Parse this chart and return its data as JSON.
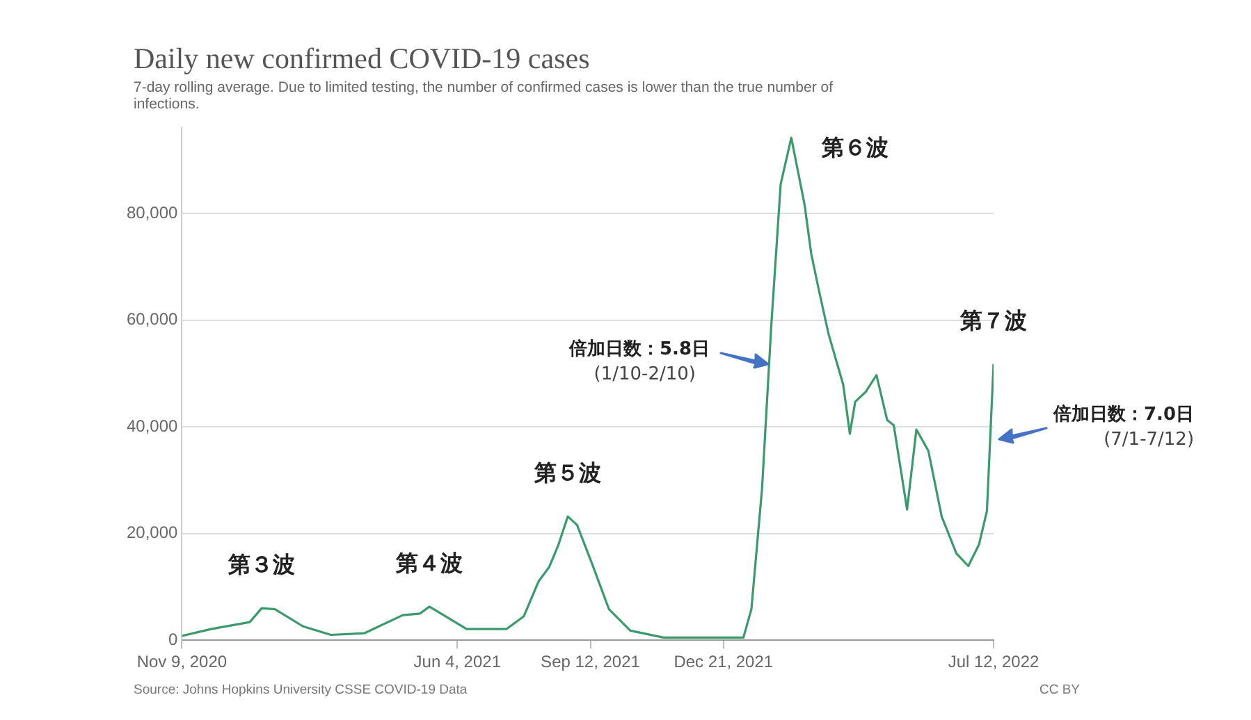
{
  "chart_data": {
    "type": "line",
    "title": "Daily new confirmed COVID-19 cases",
    "subtitle": "7-day rolling average. Due to limited testing, the number of confirmed cases is lower than the true number of infections.",
    "x": [
      "2020-11-09",
      "2020-12-01",
      "2020-12-30",
      "2021-01-08",
      "2021-01-18",
      "2021-02-08",
      "2021-03-01",
      "2021-03-26",
      "2021-04-24",
      "2021-05-07",
      "2021-05-14",
      "2021-05-26",
      "2021-06-11",
      "2021-07-11",
      "2021-07-24",
      "2021-08-04",
      "2021-08-12",
      "2021-08-19",
      "2021-08-26",
      "2021-09-02",
      "2021-09-13",
      "2021-09-26",
      "2021-10-12",
      "2021-11-06",
      "2022-01-05",
      "2022-01-11",
      "2022-01-19",
      "2022-01-26",
      "2022-02-02",
      "2022-02-10",
      "2022-02-20",
      "2022-02-25",
      "2022-03-03",
      "2022-03-10",
      "2022-03-21",
      "2022-03-26",
      "2022-03-30",
      "2022-04-07",
      "2022-04-15",
      "2022-04-23",
      "2022-04-28",
      "2022-05-08",
      "2022-05-15",
      "2022-05-24",
      "2022-06-03",
      "2022-06-14",
      "2022-06-23",
      "2022-07-01",
      "2022-07-07",
      "2022-07-12"
    ],
    "series": [
      {
        "color": "#3a9a6c",
        "values": [
          800,
          2100,
          3400,
          6000,
          5800,
          2600,
          1000,
          1300,
          4700,
          5000,
          6300,
          4500,
          2100,
          2100,
          4500,
          11000,
          13700,
          17900,
          23200,
          21600,
          14500,
          5800,
          1800,
          500,
          500,
          5800,
          28400,
          59200,
          85500,
          94200,
          81600,
          72400,
          65300,
          57400,
          47900,
          38700,
          44700,
          46600,
          49700,
          41300,
          40300,
          24500,
          39500,
          35500,
          23200,
          16300,
          13900,
          17900,
          24200,
          51800
        ]
      }
    ],
    "xlim": [
      "2020-11-09",
      "2022-07-12"
    ],
    "xticks": [
      {
        "value": "2020-11-09",
        "label": "Nov 9, 2020"
      },
      {
        "value": "2021-06-04",
        "label": "Jun 4, 2021"
      },
      {
        "value": "2021-09-12",
        "label": "Sep 12, 2021"
      },
      {
        "value": "2021-12-21",
        "label": "Dec 21, 2021"
      },
      {
        "value": "2022-07-12",
        "label": "Jul 12, 2022"
      }
    ],
    "ylim": [
      0,
      96000
    ],
    "yticks": [
      {
        "value": 0,
        "label": "0"
      },
      {
        "value": 20000,
        "label": "20,000"
      },
      {
        "value": 40000,
        "label": "40,000"
      },
      {
        "value": 60000,
        "label": "60,000"
      },
      {
        "value": 80000,
        "label": "80,000"
      }
    ],
    "grid": "y",
    "legend": false,
    "line_style": "solid",
    "marker": "none",
    "annotations": [
      {
        "text": "第３波",
        "x": "2021-01-08",
        "y": 6000
      },
      {
        "text": "第４波",
        "x": "2021-05-14",
        "y": 6300
      },
      {
        "text": "第５波",
        "x": "2021-08-26",
        "y": 23200
      },
      {
        "text": "第６波",
        "x": "2022-02-10",
        "y": 94200
      },
      {
        "text": "第７波",
        "x": "2022-07-12",
        "y": 51800
      },
      "倍加日数：5.8日\n(1/10-2/10)",
      "倍加日数：7.0日\n(7/1-7/12)",
      "Source: Johns Hopkins University CSSE COVID-19 Data",
      "CC BY"
    ]
  }
}
